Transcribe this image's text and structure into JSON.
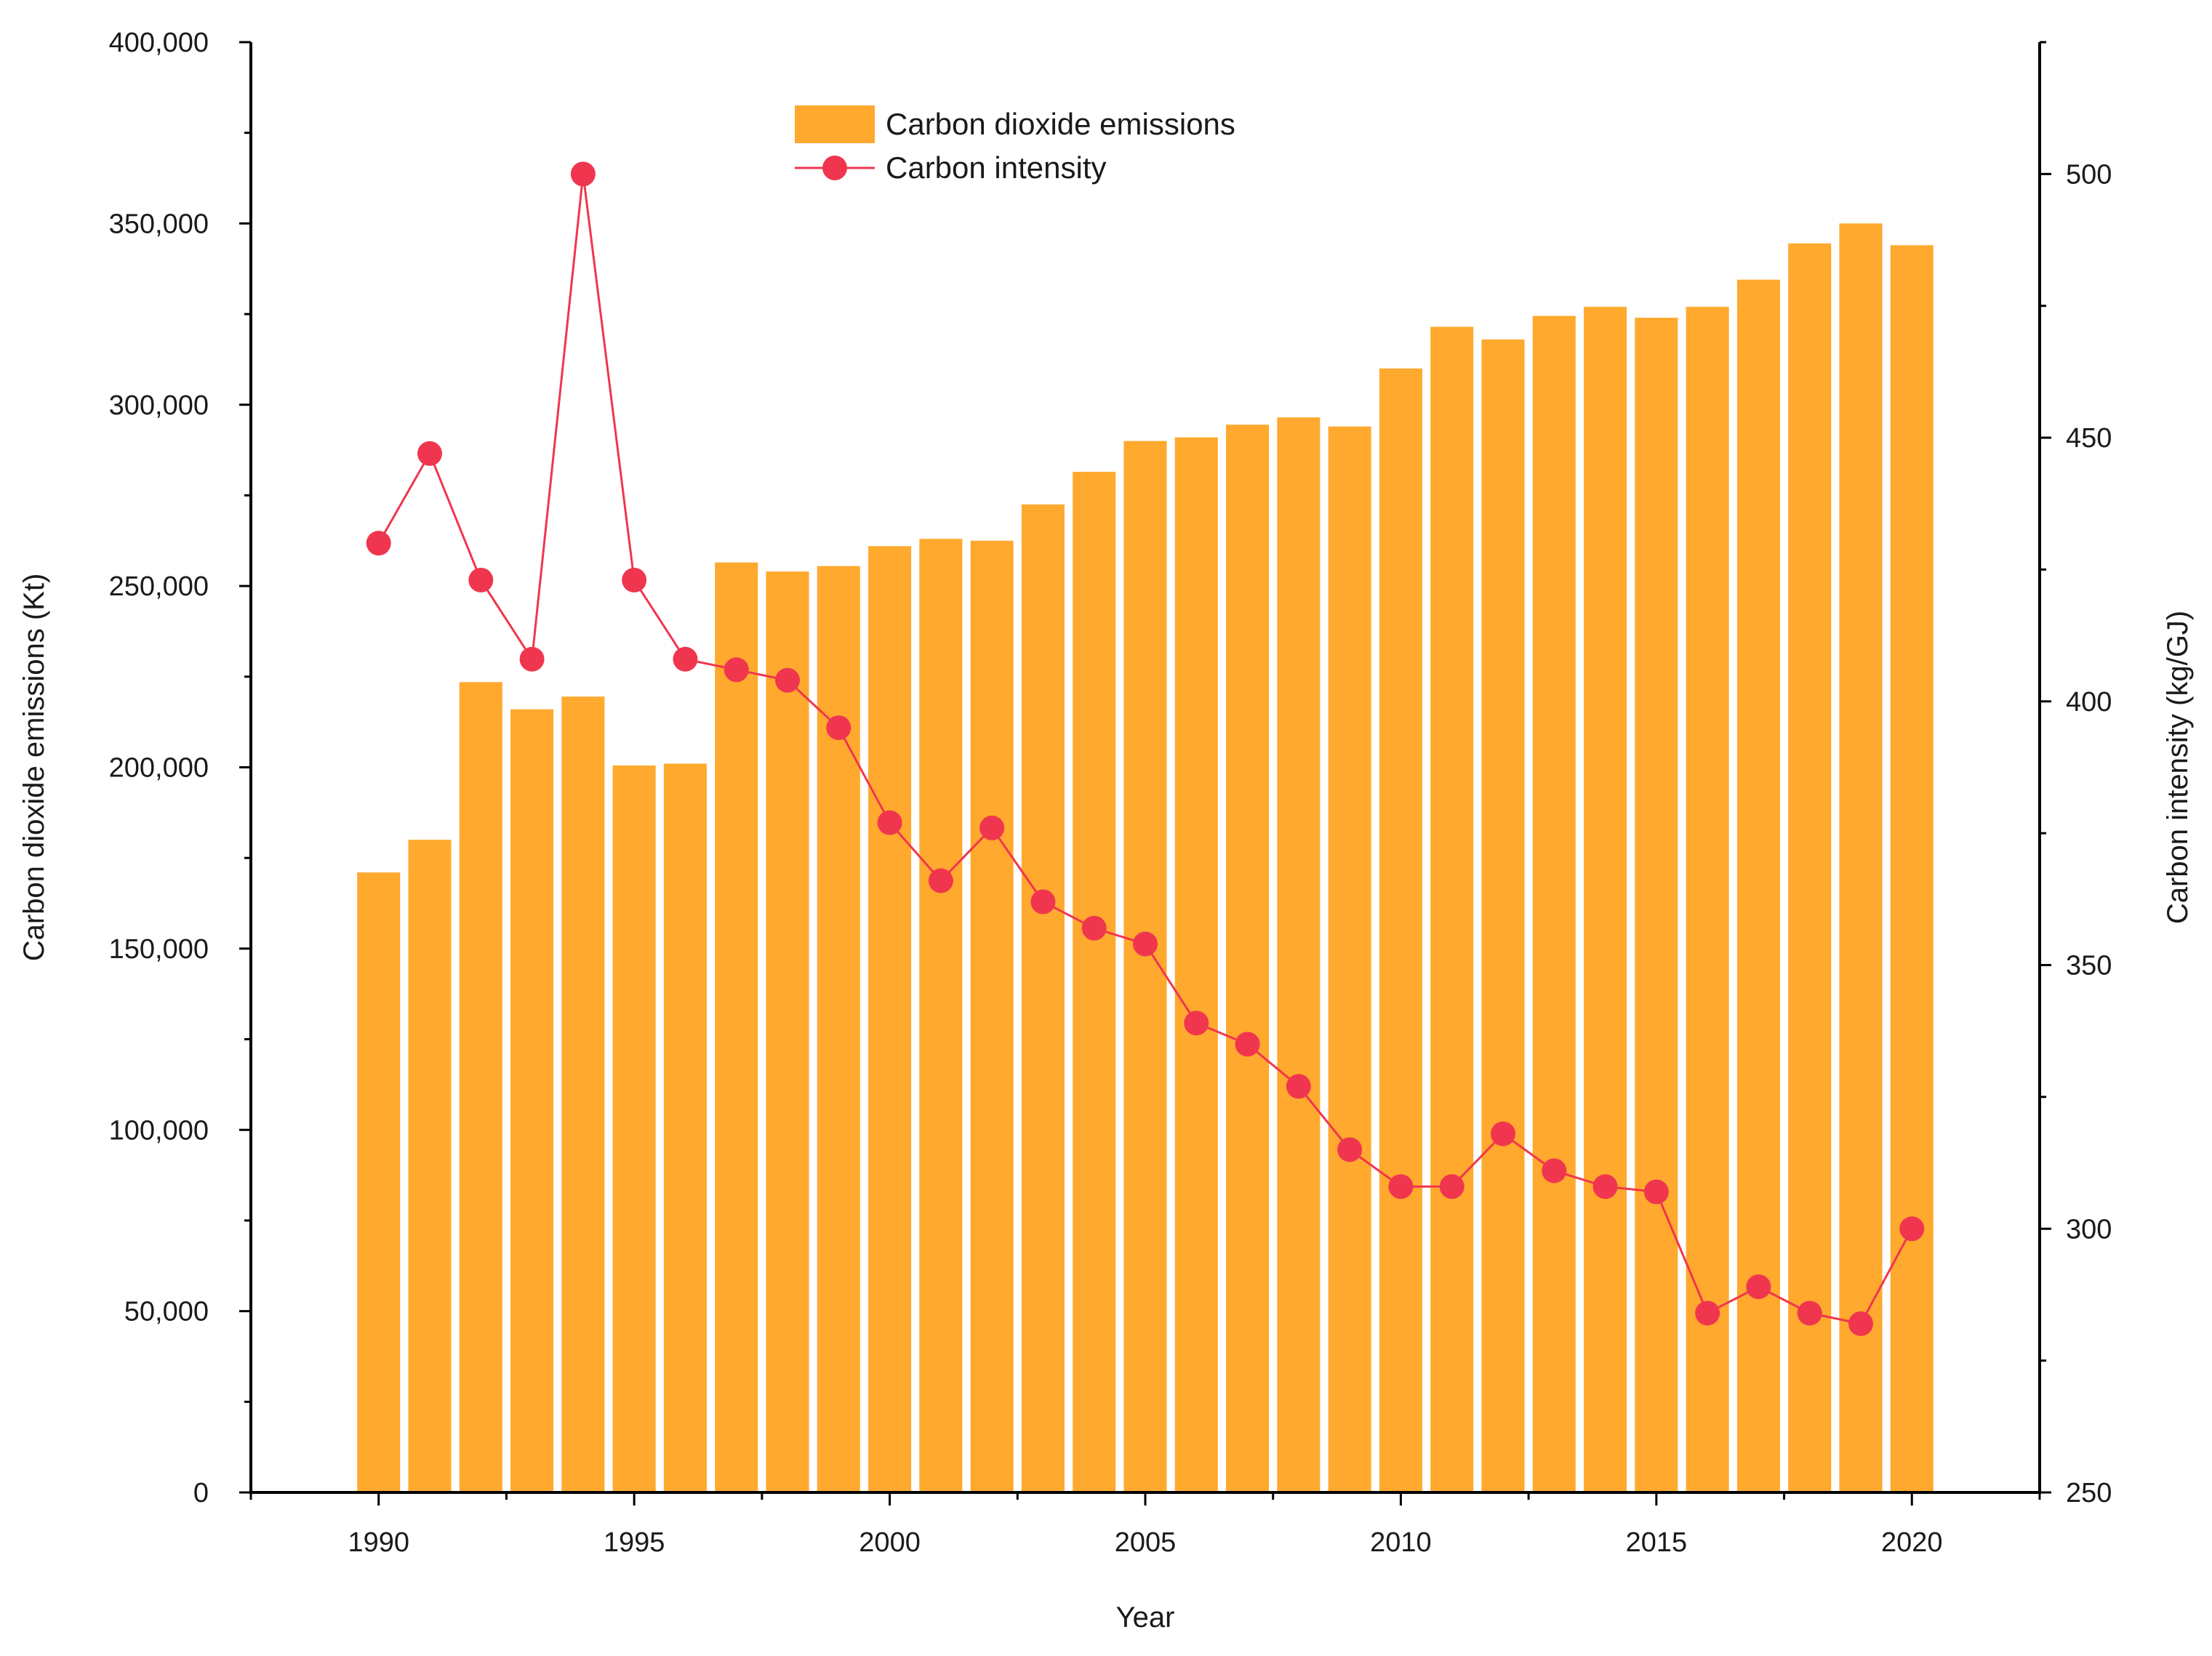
{
  "chart_data": {
    "type": "bar+line",
    "xlabel": "Year",
    "ylabel_left": "Carbon dioxide emissions (Kt)",
    "ylabel_right": "Carbon intensity (kg/GJ)",
    "xlim": [
      1987.5,
      2022.5
    ],
    "ylim_left": [
      0,
      400000
    ],
    "ylim_right": [
      250,
      525
    ],
    "x_ticks": [
      1990,
      1995,
      2000,
      2005,
      2010,
      2015,
      2020
    ],
    "y_left_ticks": [
      0,
      50000,
      100000,
      150000,
      200000,
      250000,
      300000,
      350000,
      400000
    ],
    "y_left_tick_labels": [
      "0",
      "50,000",
      "100,000",
      "150,000",
      "200,000",
      "250,000",
      "300,000",
      "350,000",
      "400,000"
    ],
    "y_right_ticks": [
      250,
      300,
      350,
      400,
      450,
      500
    ],
    "y_right_tick_labels": [
      "250",
      "300",
      "350",
      "400",
      "450",
      "500"
    ],
    "legend_position": "top-center",
    "grid": false,
    "colors": {
      "bars": "#FFA92E",
      "line": "#F0364F",
      "axis": "#000000"
    },
    "years": [
      1990,
      1991,
      1992,
      1993,
      1994,
      1995,
      1996,
      1997,
      1998,
      1999,
      2000,
      2001,
      2002,
      2003,
      2004,
      2005,
      2006,
      2007,
      2008,
      2009,
      2010,
      2011,
      2012,
      2013,
      2014,
      2015,
      2016,
      2017,
      2018,
      2019,
      2020
    ],
    "series": [
      {
        "name": "Carbon dioxide emissions",
        "type": "bar",
        "axis": "left",
        "values": [
          171000,
          180000,
          223500,
          216000,
          219500,
          200500,
          201000,
          256500,
          254000,
          255500,
          261000,
          263000,
          262500,
          272500,
          281500,
          290000,
          291000,
          294500,
          296500,
          294000,
          310000,
          321500,
          318000,
          324500,
          327000,
          324000,
          327000,
          334500,
          344500,
          350000,
          344000
        ]
      },
      {
        "name": "Carbon intensity",
        "type": "line",
        "axis": "right",
        "values": [
          430,
          447,
          423,
          408,
          500,
          423,
          408,
          406,
          404,
          395,
          377,
          366,
          376,
          362,
          357,
          354,
          339,
          335,
          327,
          315,
          308,
          308,
          318,
          311,
          308,
          307,
          284,
          289,
          284,
          282,
          300
        ]
      }
    ]
  }
}
